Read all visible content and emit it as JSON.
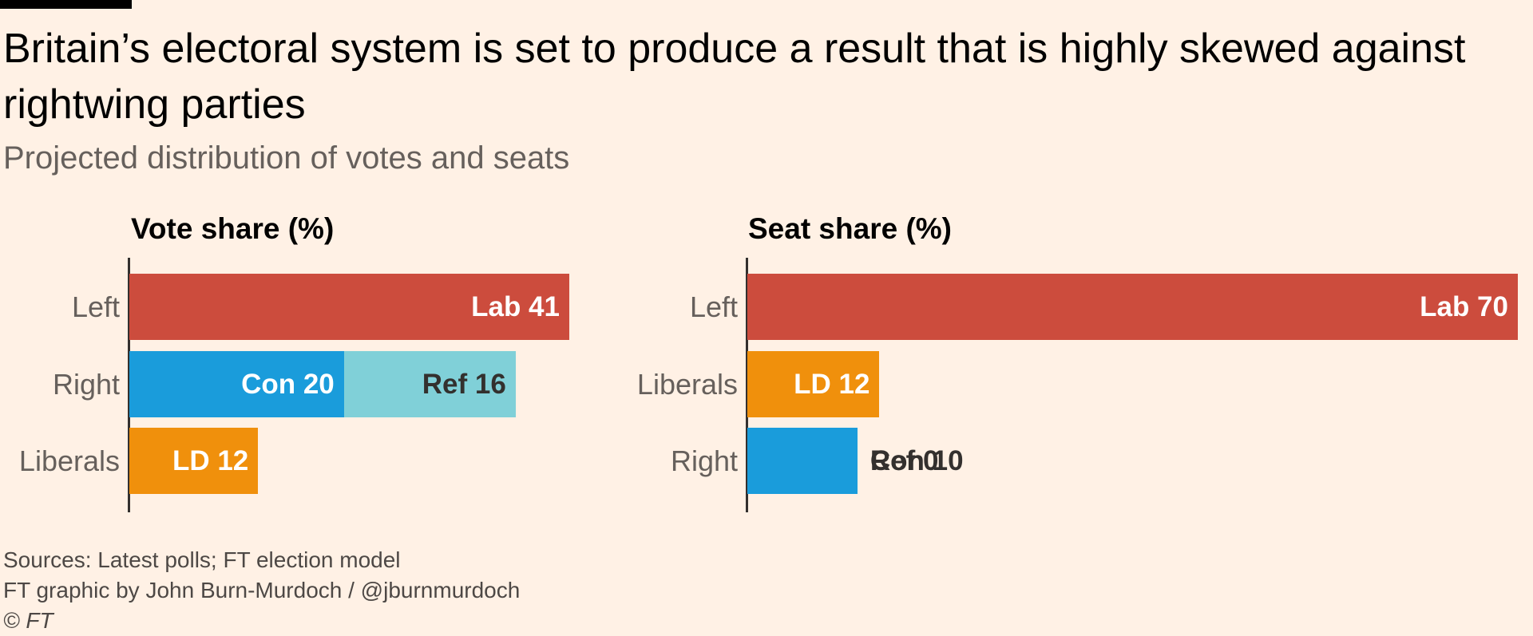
{
  "title": "Britain’s electoral system is set to produce a result that is highly skewed against rightwing parties",
  "subtitle": "Projected distribution of votes and seats",
  "footer": {
    "sources": "Sources: Latest polls; FT election model",
    "credit": "FT graphic by John Burn-Murdoch / @jburnmurdoch",
    "copyright": "© FT"
  },
  "colors": {
    "background": "#fff1e5",
    "lab": "#cc4c3d",
    "con": "#1a9cdb",
    "ref": "#80d0d8",
    "ld": "#f0900c",
    "label_light": "#ffffff",
    "label_dark": "#33302e"
  },
  "chart_data": [
    {
      "type": "bar",
      "orientation": "horizontal",
      "stacked": true,
      "title": "Vote share (%)",
      "categories": [
        "Left",
        "Right",
        "Liberals"
      ],
      "xlim": [
        0,
        41
      ],
      "grid": false,
      "segments": [
        {
          "category": "Left",
          "party": "Lab",
          "value": 41,
          "label": "Lab 41",
          "color": "#cc4c3d",
          "label_color": "#ffffff"
        },
        {
          "category": "Right",
          "party": "Con",
          "value": 20,
          "label": "Con 20",
          "color": "#1a9cdb",
          "label_color": "#ffffff"
        },
        {
          "category": "Right",
          "party": "Ref",
          "value": 16,
          "label": "Ref 16",
          "color": "#80d0d8",
          "label_color": "#33302e"
        },
        {
          "category": "Liberals",
          "party": "LD",
          "value": 12,
          "label": "LD 12",
          "color": "#f0900c",
          "label_color": "#ffffff"
        }
      ]
    },
    {
      "type": "bar",
      "orientation": "horizontal",
      "stacked": true,
      "title": "Seat share (%)",
      "categories": [
        "Left",
        "Liberals",
        "Right"
      ],
      "xlim": [
        0,
        70
      ],
      "grid": false,
      "segments": [
        {
          "category": "Left",
          "party": "Lab",
          "value": 70,
          "label": "Lab 70",
          "color": "#cc4c3d",
          "label_color": "#ffffff"
        },
        {
          "category": "Liberals",
          "party": "LD",
          "value": 12,
          "label": "LD 12",
          "color": "#f0900c",
          "label_color": "#ffffff"
        },
        {
          "category": "Right",
          "party": "Con",
          "value": 10,
          "label": "Con 10",
          "color": "#1a9cdb",
          "label_color": "#ffffff"
        },
        {
          "category": "Right",
          "party": "Ref",
          "value": 0,
          "label": "Ref 0",
          "color": "#80d0d8",
          "label_color": "#33302e"
        }
      ]
    }
  ]
}
